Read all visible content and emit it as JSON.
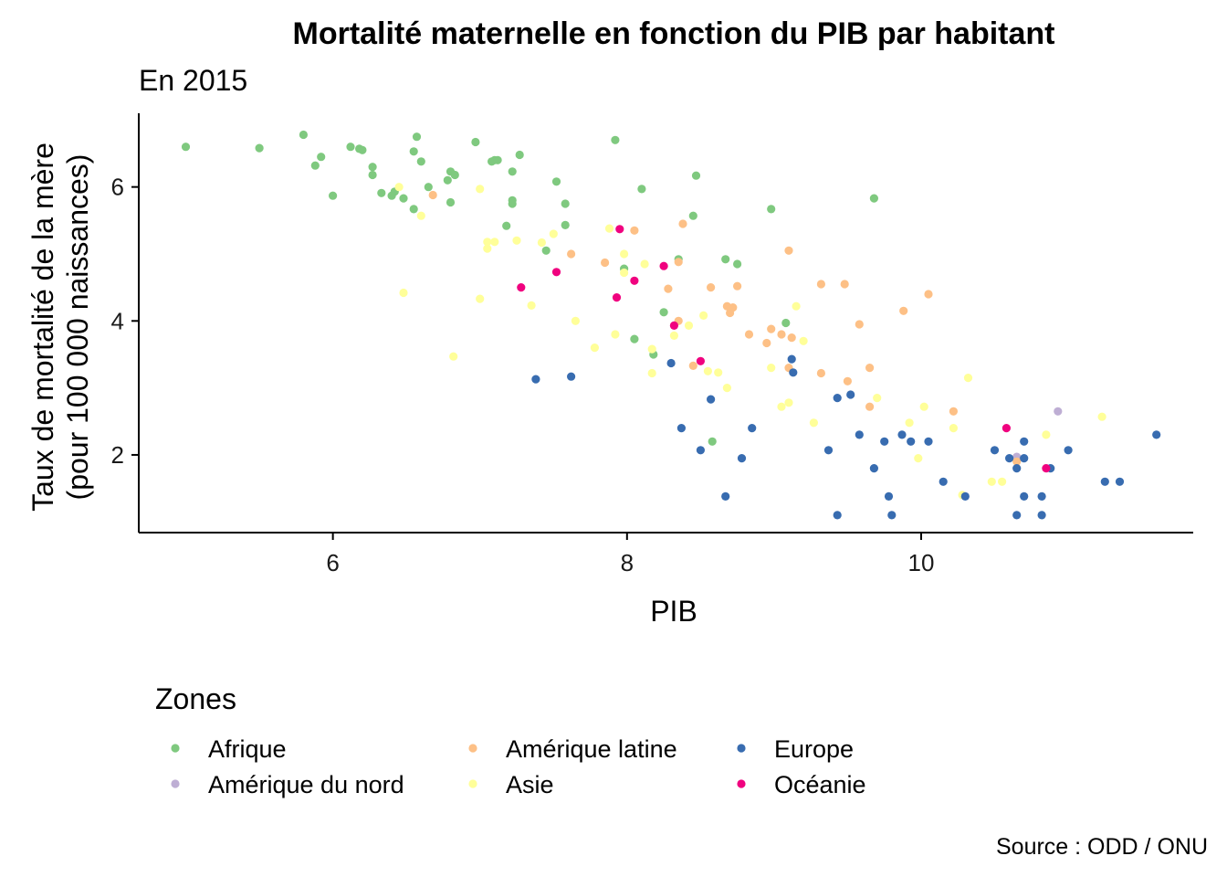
{
  "chart_data": {
    "type": "scatter",
    "title": "Mortalité maternelle en fonction du PIB par habitant",
    "subtitle": "En 2015",
    "xlabel": "PIB",
    "ylabel_line1": "Taux de mortalité de la mère",
    "ylabel_line2": "(pour 100 000 naissances)",
    "xlim": [
      4.68,
      11.85
    ],
    "ylim": [
      0.84,
      7.1
    ],
    "xticks": [
      6,
      8,
      10
    ],
    "yticks": [
      2,
      4,
      6
    ],
    "legend_title": "Zones",
    "legend_position": "bottom",
    "caption": "Source : ODD / ONU",
    "grid": false,
    "series": [
      {
        "name": "Afrique",
        "color": "#7FC97F",
        "points": [
          [
            5.0,
            6.6
          ],
          [
            5.5,
            6.58
          ],
          [
            5.8,
            6.78
          ],
          [
            5.88,
            6.32
          ],
          [
            5.92,
            6.45
          ],
          [
            6.0,
            5.87
          ],
          [
            6.12,
            6.6
          ],
          [
            6.18,
            6.57
          ],
          [
            6.2,
            6.55
          ],
          [
            6.27,
            6.3
          ],
          [
            6.27,
            6.18
          ],
          [
            6.33,
            5.91
          ],
          [
            6.4,
            5.87
          ],
          [
            6.42,
            5.93
          ],
          [
            6.48,
            5.83
          ],
          [
            6.55,
            5.67
          ],
          [
            6.55,
            6.53
          ],
          [
            6.57,
            6.75
          ],
          [
            6.6,
            6.38
          ],
          [
            6.65,
            6.0
          ],
          [
            6.78,
            6.1
          ],
          [
            6.8,
            6.23
          ],
          [
            6.8,
            5.77
          ],
          [
            6.83,
            6.18
          ],
          [
            6.97,
            6.67
          ],
          [
            7.08,
            6.38
          ],
          [
            7.1,
            6.4
          ],
          [
            7.12,
            6.4
          ],
          [
            7.18,
            5.42
          ],
          [
            7.22,
            5.8
          ],
          [
            7.22,
            5.75
          ],
          [
            7.22,
            6.23
          ],
          [
            7.27,
            6.48
          ],
          [
            7.45,
            5.05
          ],
          [
            7.52,
            6.08
          ],
          [
            7.58,
            5.43
          ],
          [
            7.58,
            5.75
          ],
          [
            7.92,
            6.7
          ],
          [
            7.98,
            4.78
          ],
          [
            8.05,
            3.73
          ],
          [
            8.1,
            5.97
          ],
          [
            8.18,
            3.5
          ],
          [
            8.25,
            4.13
          ],
          [
            8.35,
            4.92
          ],
          [
            8.45,
            5.57
          ],
          [
            8.47,
            6.17
          ],
          [
            8.58,
            2.2
          ],
          [
            8.67,
            4.92
          ],
          [
            8.75,
            4.85
          ],
          [
            8.98,
            5.67
          ],
          [
            9.08,
            3.97
          ],
          [
            9.68,
            5.83
          ]
        ]
      },
      {
        "name": "Amérique du nord",
        "color": "#BEAED4",
        "points": [
          [
            10.65,
            1.97
          ],
          [
            10.93,
            2.65
          ]
        ]
      },
      {
        "name": "Amérique latine",
        "color": "#FDC086",
        "points": [
          [
            6.68,
            5.88
          ],
          [
            7.62,
            5.0
          ],
          [
            7.85,
            4.87
          ],
          [
            8.05,
            5.35
          ],
          [
            8.28,
            4.48
          ],
          [
            8.35,
            4.0
          ],
          [
            8.38,
            5.45
          ],
          [
            8.35,
            4.88
          ],
          [
            8.45,
            3.33
          ],
          [
            8.57,
            4.5
          ],
          [
            8.68,
            4.22
          ],
          [
            8.7,
            4.12
          ],
          [
            8.72,
            4.2
          ],
          [
            8.75,
            4.52
          ],
          [
            8.83,
            3.8
          ],
          [
            8.95,
            3.67
          ],
          [
            8.98,
            3.88
          ],
          [
            9.05,
            3.8
          ],
          [
            9.1,
            5.05
          ],
          [
            9.1,
            3.3
          ],
          [
            9.12,
            3.75
          ],
          [
            9.32,
            4.55
          ],
          [
            9.32,
            3.22
          ],
          [
            9.48,
            4.55
          ],
          [
            9.5,
            3.1
          ],
          [
            9.58,
            3.95
          ],
          [
            9.65,
            3.3
          ],
          [
            9.65,
            2.72
          ],
          [
            9.88,
            4.15
          ],
          [
            10.05,
            4.4
          ],
          [
            10.22,
            2.65
          ],
          [
            10.65,
            1.9
          ]
        ]
      },
      {
        "name": "Asie",
        "color": "#FFFF99",
        "points": [
          [
            6.45,
            6.0
          ],
          [
            6.48,
            4.42
          ],
          [
            6.6,
            5.57
          ],
          [
            6.82,
            3.47
          ],
          [
            7.0,
            4.33
          ],
          [
            7.0,
            5.97
          ],
          [
            7.05,
            5.08
          ],
          [
            7.05,
            5.18
          ],
          [
            7.1,
            5.18
          ],
          [
            7.25,
            5.2
          ],
          [
            7.35,
            4.23
          ],
          [
            7.42,
            5.17
          ],
          [
            7.5,
            5.3
          ],
          [
            7.65,
            4.0
          ],
          [
            7.78,
            3.6
          ],
          [
            7.88,
            5.38
          ],
          [
            7.92,
            3.8
          ],
          [
            7.98,
            5.0
          ],
          [
            7.98,
            4.72
          ],
          [
            8.12,
            4.85
          ],
          [
            8.17,
            3.22
          ],
          [
            8.17,
            3.58
          ],
          [
            8.32,
            3.78
          ],
          [
            8.42,
            3.93
          ],
          [
            8.52,
            4.08
          ],
          [
            8.55,
            3.25
          ],
          [
            8.62,
            3.23
          ],
          [
            8.68,
            3.0
          ],
          [
            8.98,
            3.3
          ],
          [
            9.05,
            2.72
          ],
          [
            9.1,
            2.78
          ],
          [
            9.15,
            4.22
          ],
          [
            9.2,
            3.7
          ],
          [
            9.27,
            2.48
          ],
          [
            9.7,
            2.85
          ],
          [
            9.92,
            2.48
          ],
          [
            9.98,
            1.95
          ],
          [
            10.02,
            2.72
          ],
          [
            10.22,
            2.4
          ],
          [
            10.28,
            1.4
          ],
          [
            10.32,
            3.15
          ],
          [
            10.48,
            1.6
          ],
          [
            10.55,
            1.6
          ],
          [
            10.85,
            2.3
          ],
          [
            11.23,
            2.57
          ]
        ]
      },
      {
        "name": "Europe",
        "color": "#386CB0",
        "points": [
          [
            7.38,
            3.13
          ],
          [
            7.62,
            3.17
          ],
          [
            8.3,
            3.37
          ],
          [
            8.37,
            2.4
          ],
          [
            8.5,
            2.07
          ],
          [
            8.57,
            2.83
          ],
          [
            8.67,
            1.38
          ],
          [
            8.78,
            1.95
          ],
          [
            8.85,
            2.4
          ],
          [
            9.12,
            3.43
          ],
          [
            9.13,
            3.23
          ],
          [
            9.37,
            2.07
          ],
          [
            9.43,
            2.85
          ],
          [
            9.43,
            1.1
          ],
          [
            9.52,
            2.9
          ],
          [
            9.58,
            2.3
          ],
          [
            9.68,
            1.8
          ],
          [
            9.75,
            2.2
          ],
          [
            9.78,
            1.38
          ],
          [
            9.8,
            1.1
          ],
          [
            9.87,
            2.3
          ],
          [
            9.93,
            2.2
          ],
          [
            10.05,
            2.2
          ],
          [
            10.15,
            1.6
          ],
          [
            10.3,
            1.38
          ],
          [
            10.5,
            2.07
          ],
          [
            10.6,
            1.95
          ],
          [
            10.65,
            1.8
          ],
          [
            10.65,
            1.1
          ],
          [
            10.7,
            2.2
          ],
          [
            10.7,
            1.95
          ],
          [
            10.7,
            1.38
          ],
          [
            10.82,
            1.38
          ],
          [
            10.82,
            1.1
          ],
          [
            10.88,
            1.8
          ],
          [
            11.0,
            2.07
          ],
          [
            11.25,
            1.6
          ],
          [
            11.35,
            1.6
          ],
          [
            11.6,
            2.3
          ]
        ]
      },
      {
        "name": "Océanie",
        "color": "#F0027F",
        "points": [
          [
            7.28,
            4.5
          ],
          [
            7.52,
            4.73
          ],
          [
            7.93,
            4.35
          ],
          [
            7.95,
            5.37
          ],
          [
            8.05,
            4.6
          ],
          [
            8.25,
            4.82
          ],
          [
            8.32,
            3.93
          ],
          [
            8.5,
            3.4
          ],
          [
            10.58,
            2.4
          ],
          [
            10.85,
            1.8
          ]
        ]
      }
    ]
  }
}
